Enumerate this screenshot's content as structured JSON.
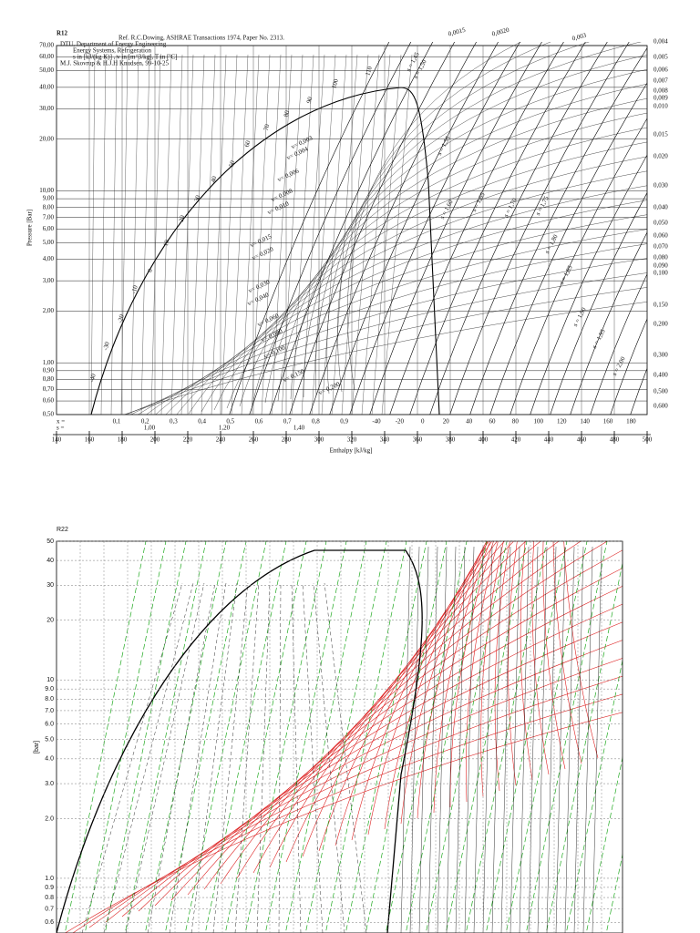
{
  "chart_data": [
    {
      "type": "ph-diagram",
      "title": "R12",
      "subtitle": "Ref. R.C.Dowing, ASHRAE Transactions 1974, Paper No. 2313.",
      "info": [
        "DTU, Department of Energy Engineering",
        "Energy Systems, Refrigeration",
        "s in [kJ/(kg K)] , v in [m^3/kg], T in [ºC]",
        "M.J. Skovrup & H.J.H Knudsen, 99-10-25"
      ],
      "x_label": "Enthalpy [kJ/kg]",
      "y_label": "Pressure [Bar]",
      "log_y": true,
      "grid": true,
      "xlim": [
        140,
        500
      ],
      "xticks": [
        140,
        160,
        180,
        200,
        220,
        240,
        260,
        280,
        300,
        320,
        340,
        360,
        380,
        400,
        420,
        440,
        460,
        480,
        500
      ],
      "ylim": [
        0.5,
        70
      ],
      "yticks": [
        {
          "value": 70,
          "label": "70,00"
        },
        {
          "value": 60,
          "label": "60,00"
        },
        {
          "value": 50,
          "label": "50,00"
        },
        {
          "value": 40,
          "label": "40,00"
        },
        {
          "value": 30,
          "label": "30,00"
        },
        {
          "value": 20,
          "label": "20,00"
        },
        {
          "value": 10,
          "label": "10,00"
        },
        {
          "value": 9,
          "label": "9,00"
        },
        {
          "value": 8,
          "label": "8,00"
        },
        {
          "value": 7,
          "label": "7,00"
        },
        {
          "value": 6,
          "label": "6,00"
        },
        {
          "value": 5,
          "label": "5,00"
        },
        {
          "value": 4,
          "label": "4,00"
        },
        {
          "value": 3,
          "label": "3,00"
        },
        {
          "value": 2,
          "label": "2,00"
        },
        {
          "value": 1,
          "label": "1,00"
        },
        {
          "value": 0.9,
          "label": "0,90"
        },
        {
          "value": 0.8,
          "label": "0,80"
        },
        {
          "value": 0.7,
          "label": "0,70"
        },
        {
          "value": 0.6,
          "label": "0,60"
        },
        {
          "value": 0.5,
          "label": "0,50"
        }
      ],
      "quality_label": "x =",
      "quality": [
        {
          "value": 0.1,
          "label": "0,1"
        },
        {
          "value": 0.2,
          "label": "0,2"
        },
        {
          "value": 0.3,
          "label": "0,3"
        },
        {
          "value": 0.4,
          "label": "0,4"
        },
        {
          "value": 0.5,
          "label": "0,5"
        },
        {
          "value": 0.6,
          "label": "0,6"
        },
        {
          "value": 0.7,
          "label": "0,7"
        },
        {
          "value": 0.8,
          "label": "0,8"
        },
        {
          "value": 0.9,
          "label": "0,9"
        }
      ],
      "entropy_label": "s =",
      "entropy_row": [
        {
          "value": 1,
          "label": "1,00"
        },
        {
          "value": 1.2,
          "label": "1,20"
        },
        {
          "value": 1.4,
          "label": "1,40"
        }
      ],
      "temperature_row": [
        -40,
        -20,
        0,
        20,
        40,
        60,
        80,
        100,
        120,
        140,
        160,
        180
      ],
      "volume_labels": [
        {
          "value": 0.004,
          "label": "0,004"
        },
        {
          "value": 0.005,
          "label": "0,005"
        },
        {
          "value": 0.006,
          "label": "0,006"
        },
        {
          "value": 0.007,
          "label": "0,007"
        },
        {
          "value": 0.008,
          "label": "0,008"
        },
        {
          "value": 0.009,
          "label": "0,009"
        },
        {
          "value": 0.01,
          "label": "0,010"
        },
        {
          "value": 0.015,
          "label": "0,015"
        },
        {
          "value": 0.02,
          "label": "0,020"
        },
        {
          "value": 0.03,
          "label": "0,030"
        },
        {
          "value": 0.04,
          "label": "0,040"
        },
        {
          "value": 0.05,
          "label": "0,050"
        },
        {
          "value": 0.06,
          "label": "0,060"
        },
        {
          "value": 0.07,
          "label": "0,070"
        },
        {
          "value": 0.08,
          "label": "0,080"
        },
        {
          "value": 0.09,
          "label": "0,090"
        },
        {
          "value": 0.1,
          "label": "0,100"
        },
        {
          "value": 0.15,
          "label": "0,150"
        },
        {
          "value": 0.2,
          "label": "0,200"
        },
        {
          "value": 0.3,
          "label": "0,300"
        },
        {
          "value": 0.4,
          "label": "0,400"
        },
        {
          "value": 0.5,
          "label": "0,500"
        },
        {
          "value": 0.6,
          "label": "0,600"
        }
      ],
      "top_labels": [
        {
          "value": 0.0015,
          "label": "0,0015"
        },
        {
          "value": 0.002,
          "label": "0,0020"
        },
        {
          "value": 0.003,
          "label": "0,003"
        }
      ],
      "isotherm_labels": [
        -40,
        -30,
        -20,
        -10,
        0,
        10,
        20,
        30,
        40,
        50,
        60,
        70,
        80,
        90,
        100,
        110
      ],
      "isochore_labels": [
        "v= 0,003",
        "v= 0,004",
        "v= 0,006",
        "v= 0,008",
        "v= 0,010",
        "v= 0,015",
        "v= 0,020",
        "v= 0,030",
        "v= 0,040",
        "v= 0,060",
        "v= 0,080",
        "v= 0,100",
        "v= 0,150",
        "v= 0,200"
      ],
      "isentrope_labels": [
        "s = 1,45",
        "s = 1,50",
        "s = 1,55",
        "s = 1,60",
        "s = 1,65",
        "s = 1,70",
        "s = 1,75",
        "s = 1,80",
        "s = 1,85",
        "s = 1,90",
        "s = 1,95",
        "s = 2,00"
      ]
    },
    {
      "type": "ph-diagram",
      "title": "R22",
      "y_label": "[bar]",
      "log_y": true,
      "grid": true,
      "grid_style": "dashed",
      "ylim": [
        0.53,
        50
      ],
      "yticks": [
        50,
        40,
        30,
        20,
        10,
        {
          "value": 9,
          "label": "9.0"
        },
        {
          "value": 8,
          "label": "8.0"
        },
        {
          "value": 7,
          "label": "7.0"
        },
        {
          "value": 6,
          "label": "6.0"
        },
        {
          "value": 5,
          "label": "5.0"
        },
        {
          "value": 4,
          "label": "4.0"
        },
        {
          "value": 3,
          "label": "3.0"
        },
        {
          "value": 2,
          "label": "2.0"
        },
        {
          "value": 1,
          "label": "1.0"
        },
        0.9,
        0.8,
        0.7,
        0.6
      ]
    }
  ]
}
